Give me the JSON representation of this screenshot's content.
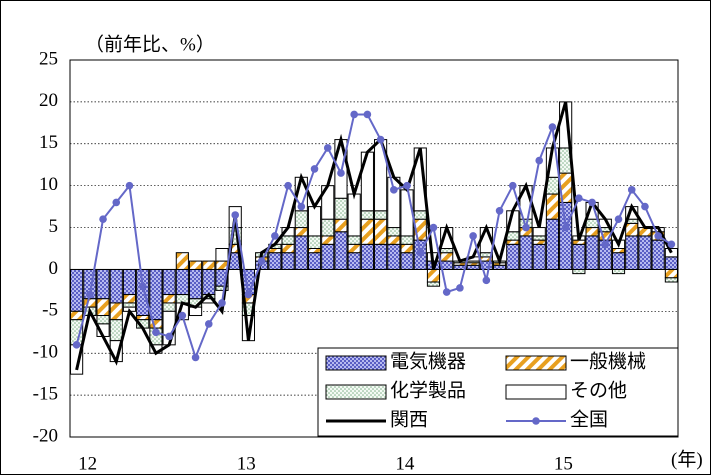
{
  "chart_data": {
    "type": "bar",
    "y_axis_label": "（前年比、%）",
    "x_axis_label": "(年)",
    "categories": [
      "12",
      null,
      null,
      null,
      null,
      null,
      null,
      null,
      null,
      null,
      null,
      null,
      "13",
      null,
      null,
      null,
      null,
      null,
      null,
      null,
      null,
      null,
      null,
      null,
      "14",
      null,
      null,
      null,
      null,
      null,
      null,
      null,
      null,
      null,
      null,
      null,
      "15",
      null,
      null,
      null,
      null,
      null,
      null,
      null,
      null,
      null
    ],
    "ylim": [
      -20,
      25
    ],
    "yticks": [
      -20,
      -15,
      -10,
      -5,
      0,
      5,
      10,
      15,
      20,
      25
    ],
    "grid": true,
    "legend": "bottom-right",
    "series": [
      {
        "name": "電気機器",
        "type": "bar",
        "color": "#7b80d6",
        "values": [
          -5,
          -3.5,
          -3.5,
          -4,
          -3,
          -5.5,
          -6,
          -3,
          -3,
          -3.5,
          -3,
          -2,
          2,
          -3,
          1,
          2,
          2,
          4,
          2,
          3,
          4.5,
          2,
          3,
          3,
          3,
          2,
          3.5,
          1,
          1,
          0.5,
          0.5,
          1,
          0.5,
          3,
          4,
          3,
          6,
          8,
          3,
          4,
          3.5,
          2,
          4,
          4,
          3.5,
          1.5
        ]
      },
      {
        "name": "一般機械",
        "type": "bar",
        "color": "#e8a020",
        "values": [
          -1,
          -1,
          -2,
          -2,
          -1,
          -0.5,
          -1,
          -1,
          2,
          1,
          1,
          1,
          1,
          -1,
          0.5,
          0.5,
          1,
          1,
          0.5,
          1,
          1.5,
          1,
          3,
          3,
          1,
          1,
          2.5,
          -1.5,
          1,
          0.3,
          0.3,
          0.5,
          0.3,
          0.5,
          1,
          0.5,
          3,
          3.5,
          0.5,
          1,
          1,
          0.5,
          1.5,
          1,
          1,
          -1
        ]
      },
      {
        "name": "化学製品",
        "type": "bar",
        "color": "#9fc8a8",
        "values": [
          -3,
          -1,
          -1,
          -2.5,
          -0.5,
          -1,
          -2,
          -1,
          -1,
          -1,
          -0.5,
          -0.5,
          2,
          -1.5,
          0.5,
          0.5,
          1,
          2,
          1.5,
          2,
          2.5,
          1,
          1,
          1,
          1,
          1,
          1,
          -0.5,
          0.5,
          0.2,
          0.2,
          0.5,
          0.2,
          1,
          1,
          0.5,
          2,
          3,
          -0.5,
          1,
          0.5,
          -0.5,
          0.5,
          0,
          0,
          -0.5
        ]
      },
      {
        "name": "その他",
        "type": "bar",
        "color": "#ffffff",
        "values": [
          -3.5,
          0,
          -1.5,
          -2.5,
          -0.5,
          0,
          -1,
          -4,
          -2,
          -1,
          -0.5,
          1.5,
          2.5,
          -3,
          0,
          0,
          1,
          4,
          3.5,
          4,
          7,
          5,
          7,
          8.5,
          6,
          5.5,
          7.5,
          1,
          2.5,
          0,
          0.5,
          3,
          0,
          2.5,
          4,
          1,
          3.5,
          5.5,
          0.5,
          2,
          1,
          1,
          1.5,
          0,
          0.5,
          1
        ]
      },
      {
        "name": "関西",
        "type": "line",
        "color": "#000000",
        "values": [
          -12,
          -5,
          -8,
          -11,
          -5,
          -7,
          -10,
          -9,
          -4,
          -4.5,
          -3,
          -5,
          6.5,
          -8.5,
          2,
          3,
          5,
          11,
          7.5,
          10,
          15.5,
          9,
          14,
          15.5,
          11,
          9.5,
          14.5,
          0,
          5,
          1,
          1.5,
          5,
          1,
          7,
          10,
          5,
          14.5,
          20,
          3.5,
          8,
          6,
          3,
          7.5,
          5,
          5,
          2
        ]
      },
      {
        "name": "全国",
        "type": "line",
        "marker": "circle",
        "color": "#6468c8",
        "values": [
          -9,
          -3,
          6,
          8,
          10,
          -2,
          -7.5,
          -8,
          -5.5,
          -10.5,
          -6.5,
          -4,
          6.5,
          -3,
          1,
          4,
          10,
          7.5,
          12,
          14.5,
          11.5,
          18.5,
          18.5,
          15.5,
          9.5,
          10,
          2,
          5,
          -2.7,
          -2.2,
          4,
          -1.3,
          7,
          10,
          5,
          13,
          17,
          5,
          8.5,
          8,
          3,
          6,
          9.5,
          7.5,
          4,
          3
        ]
      }
    ]
  }
}
